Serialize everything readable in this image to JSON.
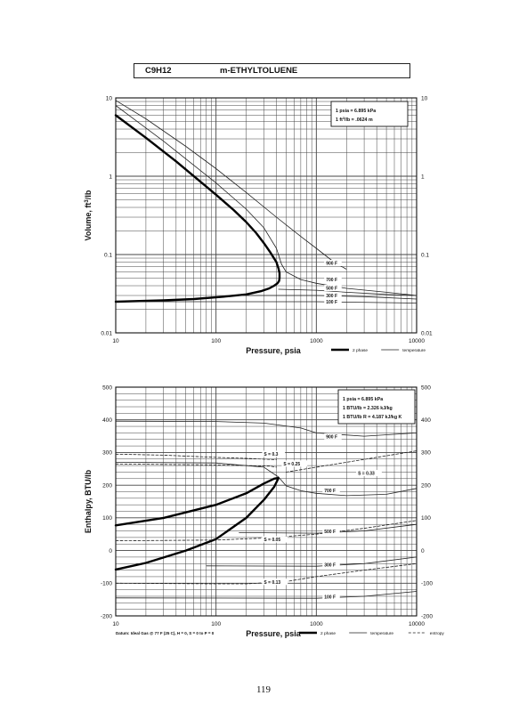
{
  "header": {
    "formula": "C9H12",
    "compound": "m-ETHYLTOLUENE"
  },
  "page_number": "119",
  "chart_data": [
    {
      "type": "line",
      "xscale": "log",
      "yscale": "log",
      "xlim": [
        10,
        10000
      ],
      "ylim": [
        0.01,
        10
      ],
      "xlabel": "Pressure,  psia",
      "ylabel": "Volume,  ft^3/lb",
      "x_ticks": [
        "10",
        "100",
        "1000",
        "10000"
      ],
      "y_ticks": [
        "0.01",
        "0.1",
        "1",
        "10"
      ],
      "conversion_box": [
        "1 psia  =  6.895 kPa",
        "1 ft^3/lb  =  .0624 m^3/kg"
      ],
      "legend": [
        {
          "label": "2 phase",
          "style": "heavy"
        },
        {
          "label": "temperature",
          "style": "thin"
        }
      ],
      "series": [
        {
          "name": "2 phase",
          "style": "heavy",
          "x": [
            10,
            20,
            40,
            70,
            100,
            150,
            200,
            250,
            300,
            350,
            400,
            420,
            430,
            430,
            425,
            410,
            380,
            340,
            280,
            200,
            120,
            60,
            30,
            10
          ],
          "y": [
            6,
            3.1,
            1.55,
            0.85,
            0.58,
            0.37,
            0.26,
            0.19,
            0.14,
            0.105,
            0.08,
            0.066,
            0.058,
            0.05,
            0.046,
            0.043,
            0.04,
            0.037,
            0.034,
            0.031,
            0.029,
            0.027,
            0.026,
            0.025
          ]
        },
        {
          "name": "900 F",
          "style": "thin",
          "x": [
            10,
            20,
            50,
            100,
            200,
            400,
            700,
            1000,
            1500,
            2000
          ],
          "y": [
            9.3,
            5.4,
            2.4,
            1.25,
            0.62,
            0.3,
            0.17,
            0.12,
            0.08,
            0.065
          ]
        },
        {
          "name": "700 F",
          "style": "thin",
          "x": [
            10,
            30,
            100,
            200,
            300,
            400,
            450,
            500,
            700,
            1000,
            2000,
            5000,
            10000
          ],
          "y": [
            8,
            2.8,
            0.82,
            0.38,
            0.22,
            0.12,
            0.075,
            0.06,
            0.048,
            0.043,
            0.037,
            0.033,
            0.03
          ]
        },
        {
          "name": "500 F",
          "style": "thin",
          "x": [
            420,
            1000,
            2000,
            5000,
            10000
          ],
          "y": [
            0.036,
            0.035,
            0.033,
            0.031,
            0.03
          ]
        },
        {
          "name": "300 F",
          "style": "thin",
          "x": [
            170,
            1000,
            3000,
            10000
          ],
          "y": [
            0.03,
            0.03,
            0.029,
            0.027
          ]
        },
        {
          "name": "100 F",
          "style": "thin",
          "x": [
            10,
            1000,
            10000
          ],
          "y": [
            0.025,
            0.025,
            0.024
          ]
        }
      ],
      "curve_labels": [
        {
          "text": "900 F",
          "x": 1250,
          "y": 0.075
        },
        {
          "text": "700 F",
          "x": 1250,
          "y": 0.046
        },
        {
          "text": "500 F",
          "x": 1250,
          "y": 0.036
        },
        {
          "text": "300 F",
          "x": 1250,
          "y": 0.029
        },
        {
          "text": "100 F",
          "x": 1250,
          "y": 0.024
        }
      ]
    },
    {
      "type": "line",
      "xscale": "log",
      "yscale": "linear",
      "xlim": [
        10,
        10000
      ],
      "ylim": [
        -200,
        500
      ],
      "xlabel": "Pressure,  psia",
      "ylabel": "Enthalpy,  BTU/lb",
      "x_ticks": [
        "10",
        "100",
        "1000",
        "10000"
      ],
      "y_ticks": [
        "-200",
        "-100",
        "0",
        "100",
        "200",
        "300",
        "400",
        "500"
      ],
      "conversion_box": [
        "1 psia  =  6.895 kPa",
        "1 BTU/lb  =  2.326 kJ/kg",
        "1 BTU/lb R  =  4.187 kJ/kg K"
      ],
      "legend": [
        {
          "label": "2 phase",
          "style": "heavy"
        },
        {
          "label": "temperature",
          "style": "thin"
        },
        {
          "label": "entropy",
          "style": "dashed"
        }
      ],
      "footnote": "Datum: Ideal Gas @ 77 F (25 C),  H = 0,  S = 0 to P = 0",
      "series": [
        {
          "name": "2 phase",
          "style": "heavy",
          "x": [
            10,
            30,
            100,
            200,
            300,
            380,
            420,
            380,
            300,
            200,
            100,
            50,
            20,
            10
          ],
          "y": [
            77,
            100,
            140,
            175,
            205,
            220,
            222,
            195,
            155,
            100,
            35,
            0,
            -38,
            -58
          ]
        },
        {
          "name": "900 F",
          "style": "thin",
          "x": [
            10,
            100,
            300,
            700,
            1000,
            3000,
            10000
          ],
          "y": [
            396,
            395,
            390,
            375,
            360,
            350,
            360
          ]
        },
        {
          "name": "700 F",
          "style": "thin",
          "x": [
            10,
            100,
            300,
            420,
            500,
            700,
            1000,
            2000,
            5000,
            10000
          ],
          "y": [
            270,
            268,
            255,
            225,
            198,
            183,
            175,
            168,
            172,
            190
          ]
        },
        {
          "name": "500 F",
          "style": "thin",
          "x": [
            170,
            1000,
            3000,
            10000
          ],
          "y": [
            55,
            53,
            60,
            80
          ]
        },
        {
          "name": "300 F",
          "style": "thin",
          "x": [
            80,
            1000,
            3000,
            10000
          ],
          "y": [
            -47,
            -48,
            -40,
            -20
          ]
        },
        {
          "name": "100 F",
          "style": "thin",
          "x": [
            10,
            1000,
            3000,
            10000
          ],
          "y": [
            -145,
            -146,
            -140,
            -125
          ]
        },
        {
          "name": "S = 0.3",
          "style": "dashed",
          "x": [
            10,
            30,
            100,
            200,
            400
          ],
          "y": [
            295,
            292,
            285,
            282,
            278
          ]
        },
        {
          "name": "S = 0.25",
          "style": "dashed",
          "x": [
            10,
            100,
            350,
            400
          ],
          "y": [
            265,
            262,
            258,
            255
          ]
        },
        {
          "name": "S = 0.33",
          "style": "dashed",
          "x": [
            500,
            1000,
            2000,
            5000,
            10000
          ],
          "y": [
            240,
            255,
            270,
            290,
            305
          ]
        },
        {
          "name": "S = 0.05",
          "style": "dashed",
          "x": [
            10,
            100,
            300,
            1000,
            3000,
            10000
          ],
          "y": [
            30,
            32,
            38,
            50,
            68,
            92
          ]
        },
        {
          "name": "S = 0.13",
          "style": "dashed",
          "x": [
            10,
            100,
            200,
            500,
            1000,
            3000,
            10000
          ],
          "y": [
            -100,
            -102,
            -102,
            -95,
            -80,
            -60,
            -40
          ]
        }
      ],
      "curve_labels": [
        {
          "text": "900 F",
          "x": 1250,
          "y": 345
        },
        {
          "text": "700 F",
          "x": 1200,
          "y": 180
        },
        {
          "text": "500 F",
          "x": 1200,
          "y": 55
        },
        {
          "text": "300 F",
          "x": 1200,
          "y": -48
        },
        {
          "text": "100 F",
          "x": 1200,
          "y": -146
        },
        {
          "text": "S = 0.3",
          "x": 300,
          "y": 292
        },
        {
          "text": "S = 0.25",
          "x": 470,
          "y": 262
        },
        {
          "text": "S = 0.33",
          "x": 2600,
          "y": 233
        },
        {
          "text": "S = 0.05",
          "x": 300,
          "y": 30
        },
        {
          "text": "S = 0.13",
          "x": 300,
          "y": -100
        }
      ]
    }
  ]
}
